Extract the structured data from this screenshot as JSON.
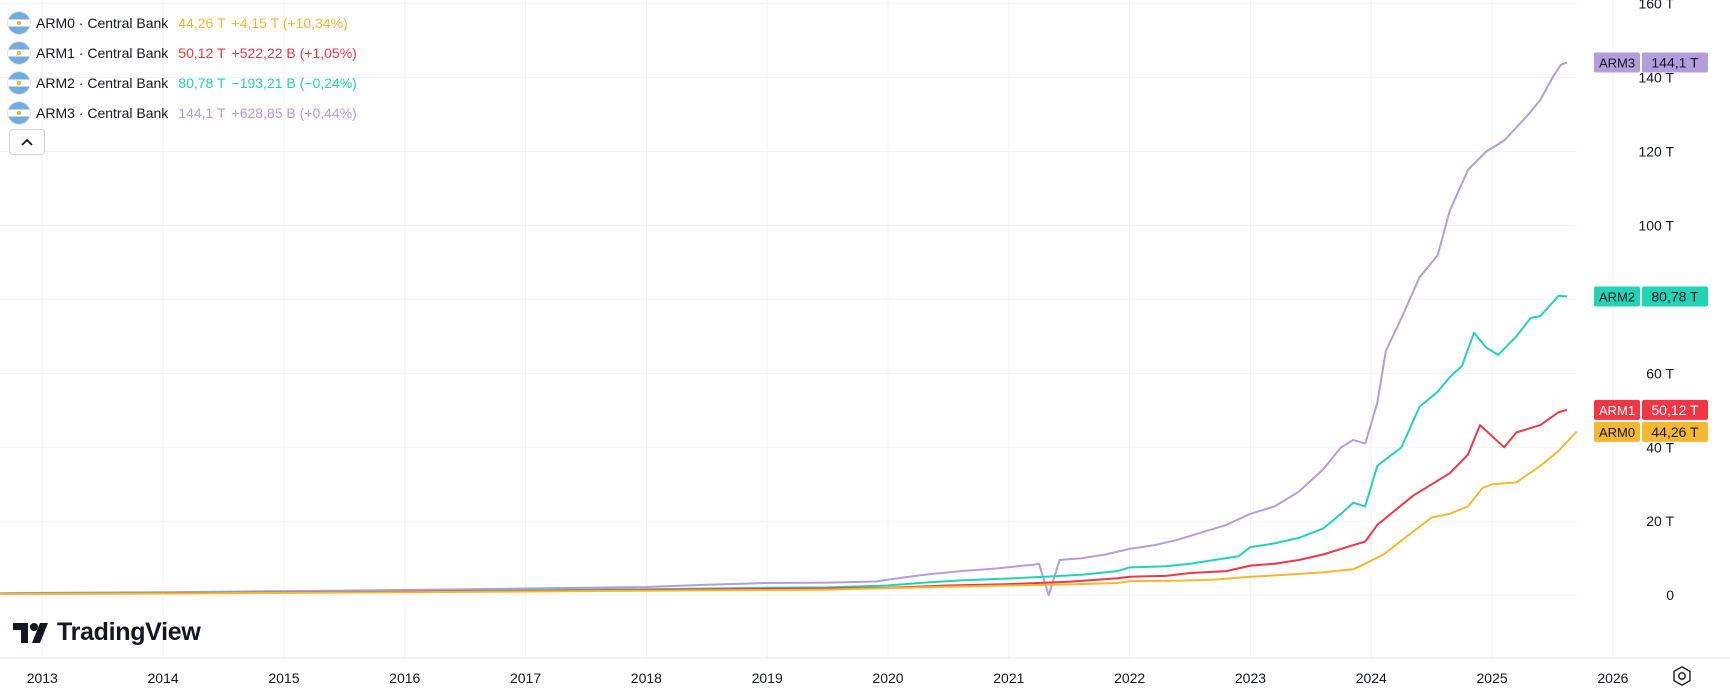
{
  "legend": [
    {
      "symbol": "ARM0 · Central Bank",
      "value": "44,26 T",
      "change": "+4,15 T (+10,34%)",
      "color": "#f5b82e"
    },
    {
      "symbol": "ARM1 · Central Bank",
      "value": "50,12 T",
      "change": "+522,22 B (+1,05%)",
      "color": "#f23645"
    },
    {
      "symbol": "ARM2 · Central Bank",
      "value": "80,78 T",
      "change": "−193,21 B (−0,24%)",
      "color": "#22d3b4"
    },
    {
      "symbol": "ARM3 · Central Bank",
      "value": "144,1 T",
      "change": "+628,85 B (+0,44%)",
      "color": "#b39ddb"
    }
  ],
  "branding": {
    "logo_text": "TradingView"
  },
  "icons": {
    "collapse": "chevron-up-icon",
    "settings": "gear-icon",
    "flag": "argentina-flag-icon"
  },
  "chart_data": {
    "type": "line",
    "x_ticks": [
      "2013",
      "2014",
      "2015",
      "2016",
      "2017",
      "2018",
      "2019",
      "2020",
      "2021",
      "2022",
      "2023",
      "2024",
      "2025",
      "2026"
    ],
    "y_ticks": [
      "0",
      "20 T",
      "40 T",
      "60 T",
      "80 T",
      "100 T",
      "120 T",
      "140 T",
      "160 T"
    ],
    "y_tick_values": [
      0,
      20,
      40,
      60,
      80,
      100,
      120,
      140,
      160
    ],
    "ylim": [
      -17,
      161
    ],
    "xlim": [
      2012.65,
      2026.1
    ],
    "unit": "T",
    "grid": true,
    "series": [
      {
        "name": "ARM3",
        "label": "ARM3",
        "value_label": "144,1 T",
        "color": "#b39ddb",
        "label_bg": "#b39ddb",
        "label_text_color": "#131722",
        "points": [
          [
            2012.65,
            0.5
          ],
          [
            2013.0,
            0.6
          ],
          [
            2014.0,
            0.8
          ],
          [
            2015.0,
            1.1
          ],
          [
            2016.0,
            1.4
          ],
          [
            2017.0,
            1.8
          ],
          [
            2017.5,
            2.0
          ],
          [
            2018.0,
            2.2
          ],
          [
            2018.5,
            2.8
          ],
          [
            2019.0,
            3.3
          ],
          [
            2019.5,
            3.4
          ],
          [
            2019.9,
            3.7
          ],
          [
            2020.0,
            4.2
          ],
          [
            2020.3,
            5.5
          ],
          [
            2020.6,
            6.5
          ],
          [
            2020.9,
            7.2
          ],
          [
            2021.0,
            7.6
          ],
          [
            2021.2,
            8.2
          ],
          [
            2021.25,
            8.5
          ],
          [
            2021.33,
            0.0
          ],
          [
            2021.42,
            9.5
          ],
          [
            2021.6,
            10.0
          ],
          [
            2021.8,
            11.0
          ],
          [
            2022.0,
            12.5
          ],
          [
            2022.2,
            13.5
          ],
          [
            2022.4,
            15.0
          ],
          [
            2022.6,
            17.0
          ],
          [
            2022.8,
            19.0
          ],
          [
            2023.0,
            22.0
          ],
          [
            2023.2,
            24.0
          ],
          [
            2023.4,
            28.0
          ],
          [
            2023.6,
            34.0
          ],
          [
            2023.75,
            40.0
          ],
          [
            2023.85,
            42.0
          ],
          [
            2023.95,
            41.0
          ],
          [
            2024.05,
            52.0
          ],
          [
            2024.12,
            66.0
          ],
          [
            2024.25,
            75.0
          ],
          [
            2024.4,
            86.0
          ],
          [
            2024.55,
            92.0
          ],
          [
            2024.65,
            104.0
          ],
          [
            2024.8,
            115.0
          ],
          [
            2024.95,
            120.0
          ],
          [
            2025.1,
            123.0
          ],
          [
            2025.3,
            130.0
          ],
          [
            2025.4,
            134.0
          ],
          [
            2025.5,
            140.0
          ],
          [
            2025.57,
            143.5
          ],
          [
            2025.62,
            144.1
          ]
        ]
      },
      {
        "name": "ARM2",
        "label": "ARM2",
        "value_label": "80,78 T",
        "color": "#22d3b4",
        "label_bg": "#22d3b4",
        "label_text_color": "#131722",
        "points": [
          [
            2012.65,
            0.4
          ],
          [
            2013.0,
            0.45
          ],
          [
            2014.0,
            0.6
          ],
          [
            2015.0,
            0.8
          ],
          [
            2016.0,
            1.0
          ],
          [
            2017.0,
            1.3
          ],
          [
            2018.0,
            1.6
          ],
          [
            2019.0,
            2.0
          ],
          [
            2019.5,
            2.1
          ],
          [
            2020.0,
            2.6
          ],
          [
            2020.3,
            3.4
          ],
          [
            2020.6,
            4.0
          ],
          [
            2021.0,
            4.5
          ],
          [
            2021.3,
            5.0
          ],
          [
            2021.6,
            5.5
          ],
          [
            2021.9,
            6.5
          ],
          [
            2022.0,
            7.5
          ],
          [
            2022.3,
            7.8
          ],
          [
            2022.5,
            8.5
          ],
          [
            2022.7,
            9.5
          ],
          [
            2022.9,
            10.5
          ],
          [
            2023.0,
            13.0
          ],
          [
            2023.2,
            14.0
          ],
          [
            2023.4,
            15.5
          ],
          [
            2023.6,
            18.0
          ],
          [
            2023.75,
            22.0
          ],
          [
            2023.85,
            25.0
          ],
          [
            2023.95,
            24.0
          ],
          [
            2024.05,
            35.0
          ],
          [
            2024.25,
            40.0
          ],
          [
            2024.4,
            51.0
          ],
          [
            2024.55,
            55.0
          ],
          [
            2024.65,
            59.0
          ],
          [
            2024.75,
            62.0
          ],
          [
            2024.85,
            71.0
          ],
          [
            2024.95,
            67.0
          ],
          [
            2025.05,
            65.0
          ],
          [
            2025.2,
            70.0
          ],
          [
            2025.32,
            75.0
          ],
          [
            2025.4,
            75.5
          ],
          [
            2025.55,
            81.0
          ],
          [
            2025.62,
            80.78
          ]
        ]
      },
      {
        "name": "ARM1",
        "label": "ARM1",
        "value_label": "50,12 T",
        "color": "#f23645",
        "label_bg": "#f23645",
        "label_text_color": "#ffffff",
        "points": [
          [
            2012.65,
            0.35
          ],
          [
            2013.0,
            0.4
          ],
          [
            2014.0,
            0.5
          ],
          [
            2015.0,
            0.7
          ],
          [
            2016.0,
            0.9
          ],
          [
            2017.0,
            1.1
          ],
          [
            2018.0,
            1.4
          ],
          [
            2019.0,
            1.7
          ],
          [
            2019.5,
            1.8
          ],
          [
            2020.0,
            2.0
          ],
          [
            2020.5,
            2.6
          ],
          [
            2021.0,
            3.0
          ],
          [
            2021.5,
            3.6
          ],
          [
            2021.9,
            4.6
          ],
          [
            2022.0,
            5.0
          ],
          [
            2022.3,
            5.2
          ],
          [
            2022.5,
            6.0
          ],
          [
            2022.8,
            6.5
          ],
          [
            2023.0,
            8.0
          ],
          [
            2023.2,
            8.5
          ],
          [
            2023.4,
            9.5
          ],
          [
            2023.6,
            11.0
          ],
          [
            2023.8,
            13.0
          ],
          [
            2023.95,
            14.5
          ],
          [
            2024.05,
            19.0
          ],
          [
            2024.2,
            23.0
          ],
          [
            2024.35,
            27.0
          ],
          [
            2024.5,
            30.0
          ],
          [
            2024.65,
            33.0
          ],
          [
            2024.8,
            38.0
          ],
          [
            2024.9,
            46.0
          ],
          [
            2025.0,
            43.0
          ],
          [
            2025.1,
            40.0
          ],
          [
            2025.2,
            44.0
          ],
          [
            2025.4,
            46.0
          ],
          [
            2025.55,
            49.5
          ],
          [
            2025.62,
            50.12
          ]
        ]
      },
      {
        "name": "ARM0",
        "label": "ARM0",
        "value_label": "44,26 T",
        "color": "#f5b82e",
        "label_bg": "#f5b82e",
        "label_text_color": "#131722",
        "points": [
          [
            2012.65,
            0.3
          ],
          [
            2013.0,
            0.35
          ],
          [
            2014.0,
            0.45
          ],
          [
            2015.0,
            0.6
          ],
          [
            2016.0,
            0.8
          ],
          [
            2017.0,
            1.0
          ],
          [
            2018.0,
            1.2
          ],
          [
            2019.0,
            1.4
          ],
          [
            2019.5,
            1.5
          ],
          [
            2020.0,
            1.9
          ],
          [
            2020.5,
            2.3
          ],
          [
            2021.0,
            2.6
          ],
          [
            2021.5,
            2.9
          ],
          [
            2021.9,
            3.3
          ],
          [
            2022.0,
            3.8
          ],
          [
            2022.4,
            3.9
          ],
          [
            2022.7,
            4.2
          ],
          [
            2023.0,
            5.0
          ],
          [
            2023.3,
            5.5
          ],
          [
            2023.6,
            6.2
          ],
          [
            2023.85,
            7.0
          ],
          [
            2023.95,
            8.5
          ],
          [
            2024.1,
            11.0
          ],
          [
            2024.3,
            16.0
          ],
          [
            2024.5,
            21.0
          ],
          [
            2024.65,
            22.0
          ],
          [
            2024.8,
            24.0
          ],
          [
            2024.92,
            29.0
          ],
          [
            2025.0,
            30.0
          ],
          [
            2025.2,
            30.5
          ],
          [
            2025.4,
            35.0
          ],
          [
            2025.55,
            39.0
          ],
          [
            2025.7,
            44.26
          ]
        ]
      }
    ]
  }
}
